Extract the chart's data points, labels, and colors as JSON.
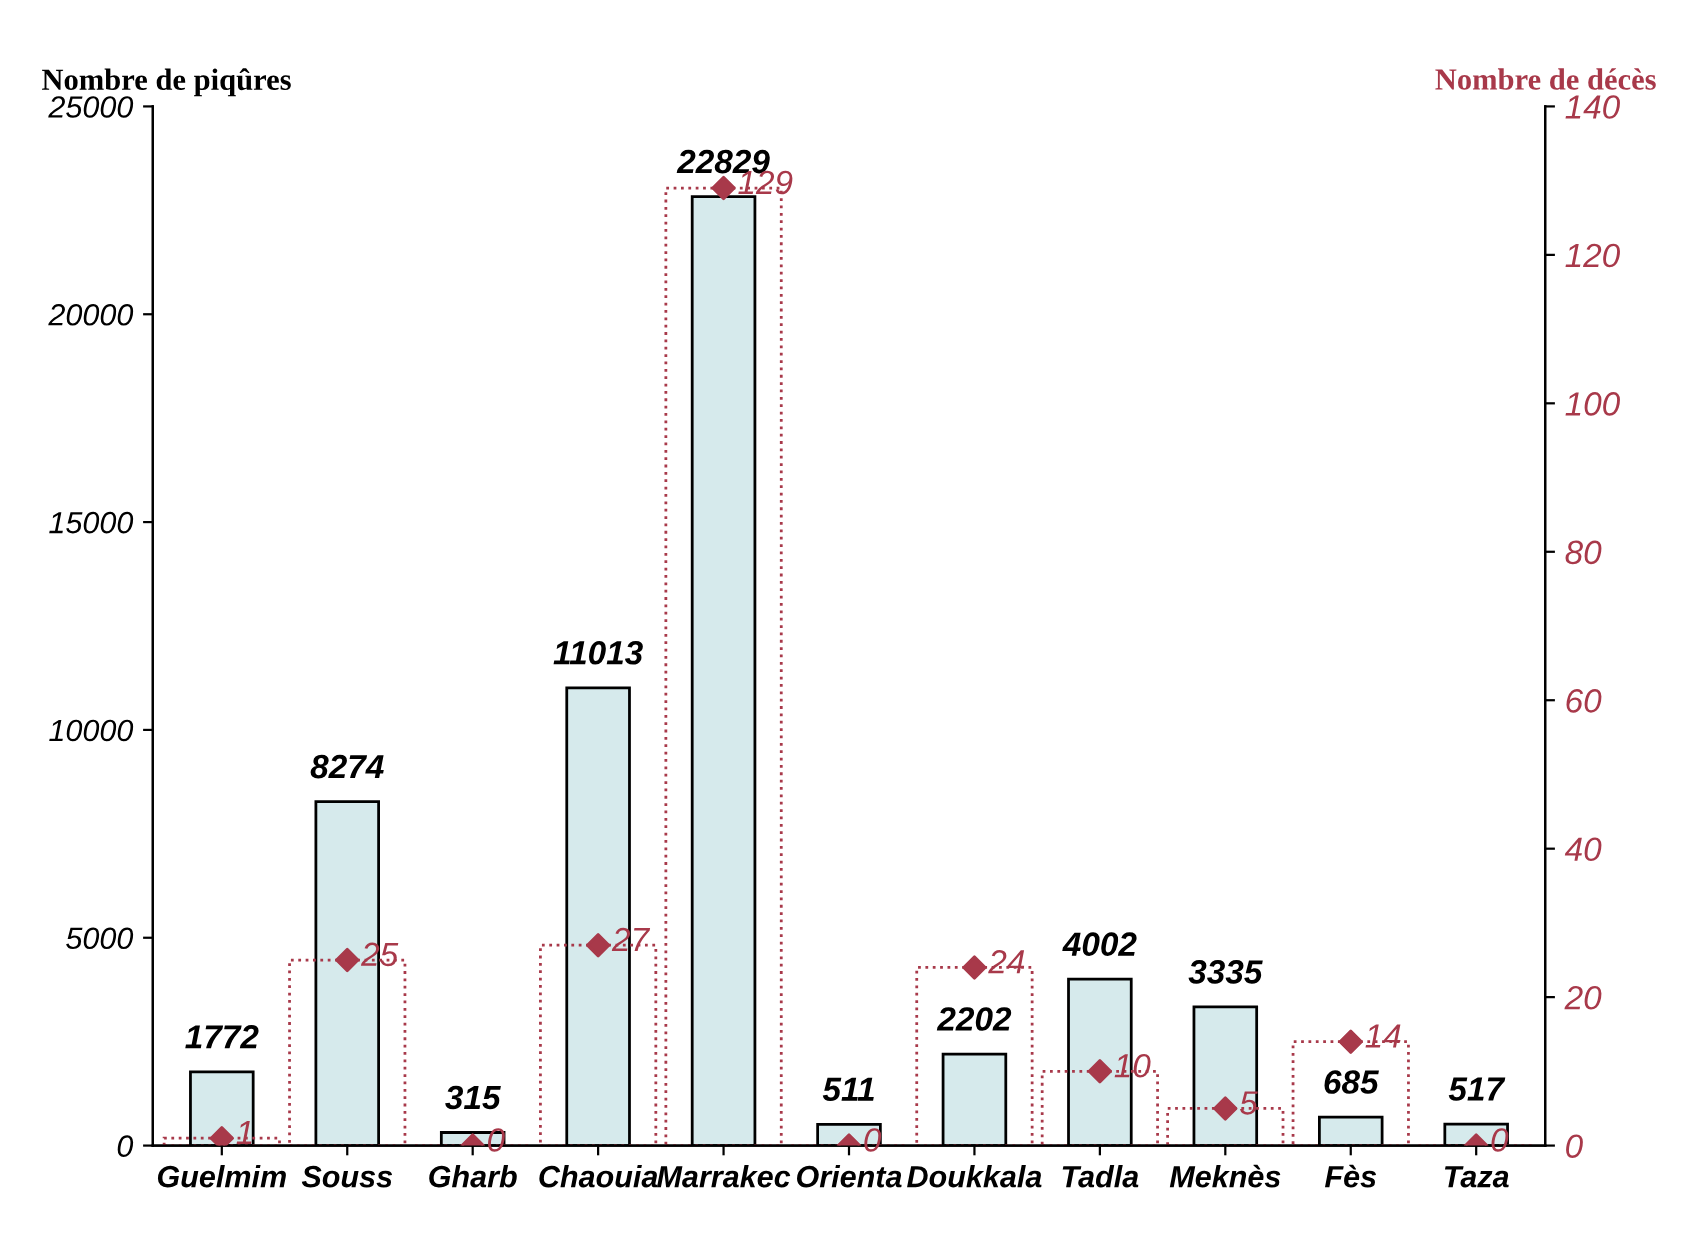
{
  "chart_data": {
    "type": "bar",
    "categories": [
      "Guelmim",
      "Souss",
      "Gharb",
      "Chaouia",
      "Marrakec",
      "Orienta",
      "Doukkala",
      "Tadla",
      "Meknès",
      "Fès",
      "Taza"
    ],
    "ylabel": "Nombre de piqûres",
    "y2label": "Nombre de décès",
    "series": [
      {
        "color": "#d6eaec",
        "values": [
          1772,
          8274,
          315,
          11013,
          22829,
          511,
          2202,
          4002,
          3335,
          685,
          517
        ],
        "value_labels": [
          "1772",
          "8274",
          "315",
          "11013",
          "22829",
          "511",
          "2202",
          "4002",
          "3335",
          "685",
          "517"
        ]
      },
      {
        "type": "bar",
        "axis": "y2",
        "color": "#a8394a",
        "line_style": "dotted",
        "values": [
          1,
          25,
          0,
          27,
          129,
          0,
          24,
          10,
          5,
          14,
          0
        ]
      },
      {
        "type": "scatter",
        "axis": "y2",
        "color": "#a8394a",
        "marker": "diamond",
        "values": [
          1,
          25,
          0,
          27,
          129,
          0,
          24,
          10,
          5,
          14,
          0
        ],
        "value_labels": [
          "1",
          "25",
          "0",
          "27",
          "129",
          "0",
          "24",
          "10",
          "5",
          "14",
          "0"
        ]
      }
    ],
    "ylim": [
      0,
      25000
    ],
    "yticks": [
      0,
      5000,
      10000,
      15000,
      20000,
      25000
    ],
    "y2lim": [
      0,
      140
    ],
    "y2ticks": [
      0,
      20,
      40,
      60,
      80,
      100,
      120,
      140
    ],
    "grid": false,
    "legend": false
  }
}
